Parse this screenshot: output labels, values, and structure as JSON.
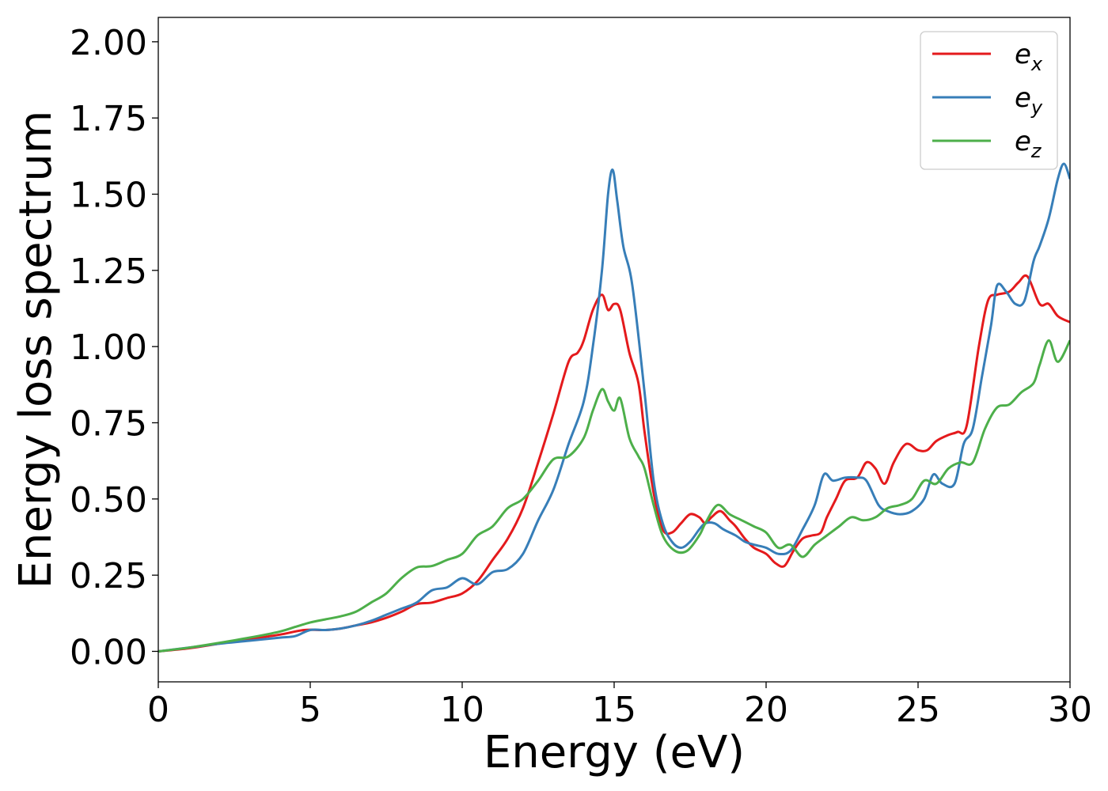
{
  "chart_data": {
    "type": "line",
    "title": "",
    "xlabel": "Energy (eV)",
    "ylabel": "Energy loss spectrum",
    "xlim": [
      0,
      30
    ],
    "ylim": [
      -0.1,
      2.08
    ],
    "xticks": [
      "0",
      "5",
      "10",
      "15",
      "20",
      "25",
      "30"
    ],
    "yticks": [
      "0.00",
      "0.25",
      "0.50",
      "0.75",
      "1.00",
      "1.25",
      "1.50",
      "1.75",
      "2.00"
    ],
    "grid": false,
    "legend_position": "top-right",
    "series": [
      {
        "name": "e_x",
        "legend_base": "e",
        "legend_sub": "x",
        "color": "#e41a1c",
        "x": [
          0,
          1,
          2,
          3,
          4,
          4.8,
          5.5,
          6,
          6.5,
          7,
          7.5,
          8,
          8.5,
          9,
          9.5,
          10,
          10.5,
          11,
          11.5,
          12,
          12.5,
          13,
          13.5,
          13.8,
          14,
          14.3,
          14.6,
          14.8,
          15,
          15.2,
          15.5,
          15.8,
          16,
          16.3,
          16.6,
          16.9,
          17.2,
          17.5,
          17.8,
          18,
          18.2,
          18.5,
          18.8,
          19,
          19.3,
          19.6,
          20,
          20.3,
          20.6,
          20.9,
          21.2,
          21.5,
          21.8,
          22,
          22.3,
          22.6,
          23,
          23.3,
          23.6,
          23.9,
          24.2,
          24.6,
          25,
          25.3,
          25.6,
          26,
          26.3,
          26.6,
          27,
          27.3,
          27.6,
          28,
          28.3,
          28.6,
          29,
          29.3,
          29.6,
          30
        ],
        "y": [
          0,
          0.01,
          0.025,
          0.04,
          0.055,
          0.07,
          0.07,
          0.075,
          0.085,
          0.095,
          0.11,
          0.13,
          0.155,
          0.16,
          0.175,
          0.19,
          0.23,
          0.3,
          0.37,
          0.47,
          0.62,
          0.78,
          0.95,
          0.98,
          1.02,
          1.12,
          1.17,
          1.12,
          1.14,
          1.12,
          0.98,
          0.88,
          0.72,
          0.52,
          0.4,
          0.39,
          0.42,
          0.45,
          0.44,
          0.42,
          0.44,
          0.46,
          0.43,
          0.41,
          0.37,
          0.34,
          0.32,
          0.29,
          0.28,
          0.33,
          0.37,
          0.38,
          0.39,
          0.44,
          0.5,
          0.56,
          0.57,
          0.62,
          0.6,
          0.55,
          0.62,
          0.68,
          0.66,
          0.66,
          0.69,
          0.71,
          0.72,
          0.74,
          1.0,
          1.15,
          1.17,
          1.18,
          1.21,
          1.23,
          1.14,
          1.14,
          1.1,
          1.08
        ]
      },
      {
        "name": "e_y",
        "legend_base": "e",
        "legend_sub": "y",
        "color": "#377eb8",
        "x": [
          0,
          1,
          2,
          3,
          4,
          4.5,
          5,
          5.5,
          6,
          6.5,
          7,
          7.5,
          8,
          8.5,
          9,
          9.5,
          10,
          10.5,
          11,
          11.5,
          12,
          12.5,
          13,
          13.5,
          14,
          14.3,
          14.6,
          14.8,
          14.95,
          15.1,
          15.3,
          15.6,
          16,
          16.3,
          16.6,
          16.9,
          17.2,
          17.5,
          17.8,
          18,
          18.3,
          18.6,
          19,
          19.3,
          19.6,
          20,
          20.4,
          20.8,
          21.2,
          21.6,
          21.9,
          22.2,
          22.6,
          23,
          23.3,
          23.7,
          24,
          24.4,
          24.8,
          25.2,
          25.5,
          25.8,
          26.2,
          26.5,
          26.8,
          27.1,
          27.4,
          27.6,
          27.9,
          28.2,
          28.5,
          28.8,
          29,
          29.3,
          29.6,
          29.8,
          30
        ],
        "y": [
          0,
          0.012,
          0.025,
          0.035,
          0.045,
          0.05,
          0.07,
          0.07,
          0.075,
          0.085,
          0.1,
          0.12,
          0.14,
          0.16,
          0.2,
          0.21,
          0.24,
          0.22,
          0.26,
          0.27,
          0.32,
          0.43,
          0.53,
          0.68,
          0.82,
          1.0,
          1.25,
          1.5,
          1.58,
          1.48,
          1.33,
          1.2,
          0.85,
          0.56,
          0.42,
          0.36,
          0.34,
          0.36,
          0.4,
          0.42,
          0.42,
          0.4,
          0.38,
          0.36,
          0.35,
          0.34,
          0.32,
          0.33,
          0.4,
          0.48,
          0.58,
          0.56,
          0.57,
          0.57,
          0.56,
          0.48,
          0.46,
          0.45,
          0.46,
          0.5,
          0.58,
          0.55,
          0.55,
          0.68,
          0.73,
          0.9,
          1.07,
          1.2,
          1.18,
          1.14,
          1.15,
          1.28,
          1.33,
          1.42,
          1.55,
          1.6,
          1.55
        ]
      },
      {
        "name": "e_z",
        "legend_base": "e",
        "legend_sub": "z",
        "color": "#4daf4a",
        "x": [
          0,
          1,
          2,
          3,
          4,
          4.5,
          5,
          5.5,
          6,
          6.5,
          7,
          7.5,
          8,
          8.5,
          9,
          9.5,
          10,
          10.5,
          11,
          11.5,
          12,
          12.5,
          13,
          13.5,
          14,
          14.3,
          14.6,
          14.8,
          15,
          15.2,
          15.5,
          15.8,
          16,
          16.3,
          16.6,
          17,
          17.4,
          17.8,
          18,
          18.4,
          18.8,
          19.2,
          19.6,
          20,
          20.4,
          20.8,
          21.2,
          21.6,
          22,
          22.4,
          22.8,
          23.2,
          23.6,
          24,
          24.4,
          24.8,
          25.2,
          25.6,
          26,
          26.4,
          26.8,
          27.2,
          27.6,
          28,
          28.4,
          28.8,
          29,
          29.3,
          29.6,
          30
        ],
        "y": [
          0,
          0.012,
          0.028,
          0.045,
          0.065,
          0.08,
          0.095,
          0.105,
          0.115,
          0.13,
          0.16,
          0.19,
          0.24,
          0.275,
          0.28,
          0.3,
          0.32,
          0.38,
          0.41,
          0.47,
          0.5,
          0.56,
          0.63,
          0.64,
          0.7,
          0.79,
          0.86,
          0.82,
          0.79,
          0.83,
          0.7,
          0.64,
          0.6,
          0.48,
          0.38,
          0.33,
          0.33,
          0.38,
          0.42,
          0.48,
          0.45,
          0.43,
          0.41,
          0.39,
          0.34,
          0.35,
          0.31,
          0.35,
          0.38,
          0.41,
          0.44,
          0.43,
          0.44,
          0.47,
          0.48,
          0.5,
          0.56,
          0.55,
          0.6,
          0.62,
          0.62,
          0.73,
          0.8,
          0.81,
          0.85,
          0.88,
          0.94,
          1.02,
          0.95,
          1.02
        ]
      }
    ]
  }
}
